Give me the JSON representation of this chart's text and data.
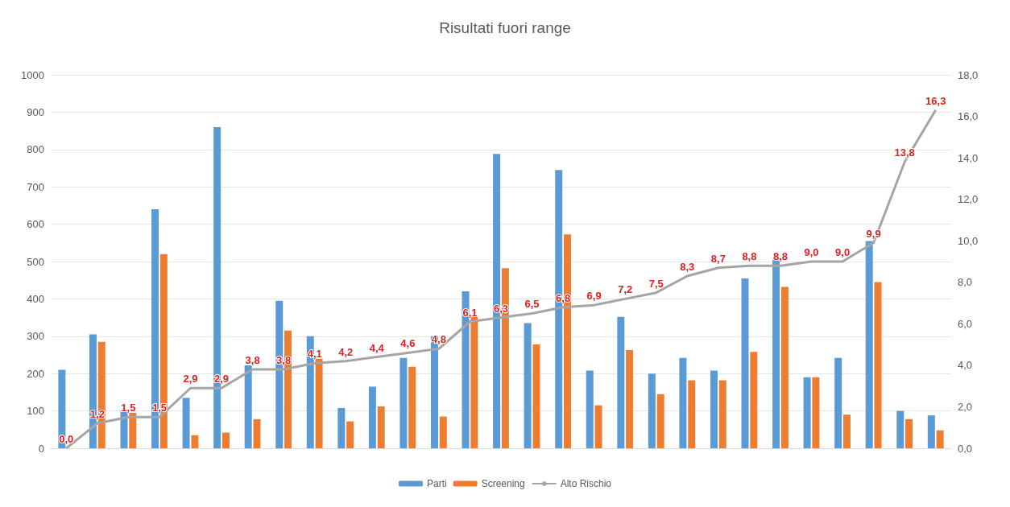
{
  "chart_data": {
    "type": "bar",
    "title": "Risultati fuori range",
    "categories": [
      null,
      null,
      null,
      null,
      null,
      null,
      null,
      null,
      null,
      null,
      null,
      null,
      null,
      null,
      null,
      null,
      null,
      null,
      null,
      null,
      null,
      null,
      null,
      null,
      null,
      null,
      null,
      null,
      null
    ],
    "series": [
      {
        "name": "Parti",
        "color": "#5b9bd5",
        "values": [
          210,
          305,
          100,
          640,
          135,
          860,
          222,
          395,
          300,
          108,
          165,
          242,
          300,
          420,
          788,
          335,
          745,
          208,
          352,
          200,
          242,
          208,
          455,
          505,
          190,
          242,
          555,
          100,
          88
        ]
      },
      {
        "name": "Screening",
        "color": "#ed7d31",
        "values": [
          null,
          285,
          95,
          520,
          35,
          42,
          78,
          315,
          240,
          72,
          112,
          218,
          85,
          355,
          482,
          278,
          573,
          115,
          263,
          145,
          182,
          182,
          258,
          432,
          190,
          90,
          445,
          78,
          48
        ]
      },
      {
        "name": "Alto Rischio",
        "type": "line",
        "axis": "y2",
        "color": "#a5a5a5",
        "marker": "none",
        "values": [
          0.0,
          1.2,
          1.5,
          1.5,
          2.9,
          2.9,
          3.8,
          3.8,
          4.1,
          4.2,
          4.4,
          4.6,
          4.8,
          6.1,
          6.3,
          6.5,
          6.8,
          6.9,
          7.2,
          7.5,
          8.3,
          8.7,
          8.8,
          8.8,
          9.0,
          9.0,
          9.9,
          13.8,
          16.3
        ],
        "value_labels": [
          "0,0",
          "1,2",
          "1,5",
          "1,5",
          "2,9",
          "2,9",
          "3,8",
          "3,8",
          "4,1",
          "4,2",
          "4,4",
          "4,6",
          "4,8",
          "6,1",
          "6,3",
          "6,5",
          "6,8",
          "6,9",
          "7,2",
          "7,5",
          "8,3",
          "8,7",
          "8,8",
          "8,8",
          "9,0",
          "9,0",
          "9,9",
          "13,8",
          "16,3"
        ]
      }
    ],
    "ylim": [
      0,
      1000
    ],
    "yticks": [
      0,
      100,
      200,
      300,
      400,
      500,
      600,
      700,
      800,
      900,
      1000
    ],
    "y2lim": [
      0,
      18
    ],
    "y2ticks": [
      {
        "value": 0,
        "label": "0,0"
      },
      {
        "value": 2,
        "label": "2,0"
      },
      {
        "value": 4,
        "label": "4,0"
      },
      {
        "value": 6,
        "label": "6,0"
      },
      {
        "value": 8,
        "label": "8,0"
      },
      {
        "value": 10,
        "label": "10,0"
      },
      {
        "value": 12,
        "label": "12,0"
      },
      {
        "value": 14,
        "label": "14,0"
      },
      {
        "value": 16,
        "label": "16,0"
      },
      {
        "value": 18,
        "label": "18,0"
      }
    ],
    "grid": "y",
    "legend": "bottom"
  }
}
